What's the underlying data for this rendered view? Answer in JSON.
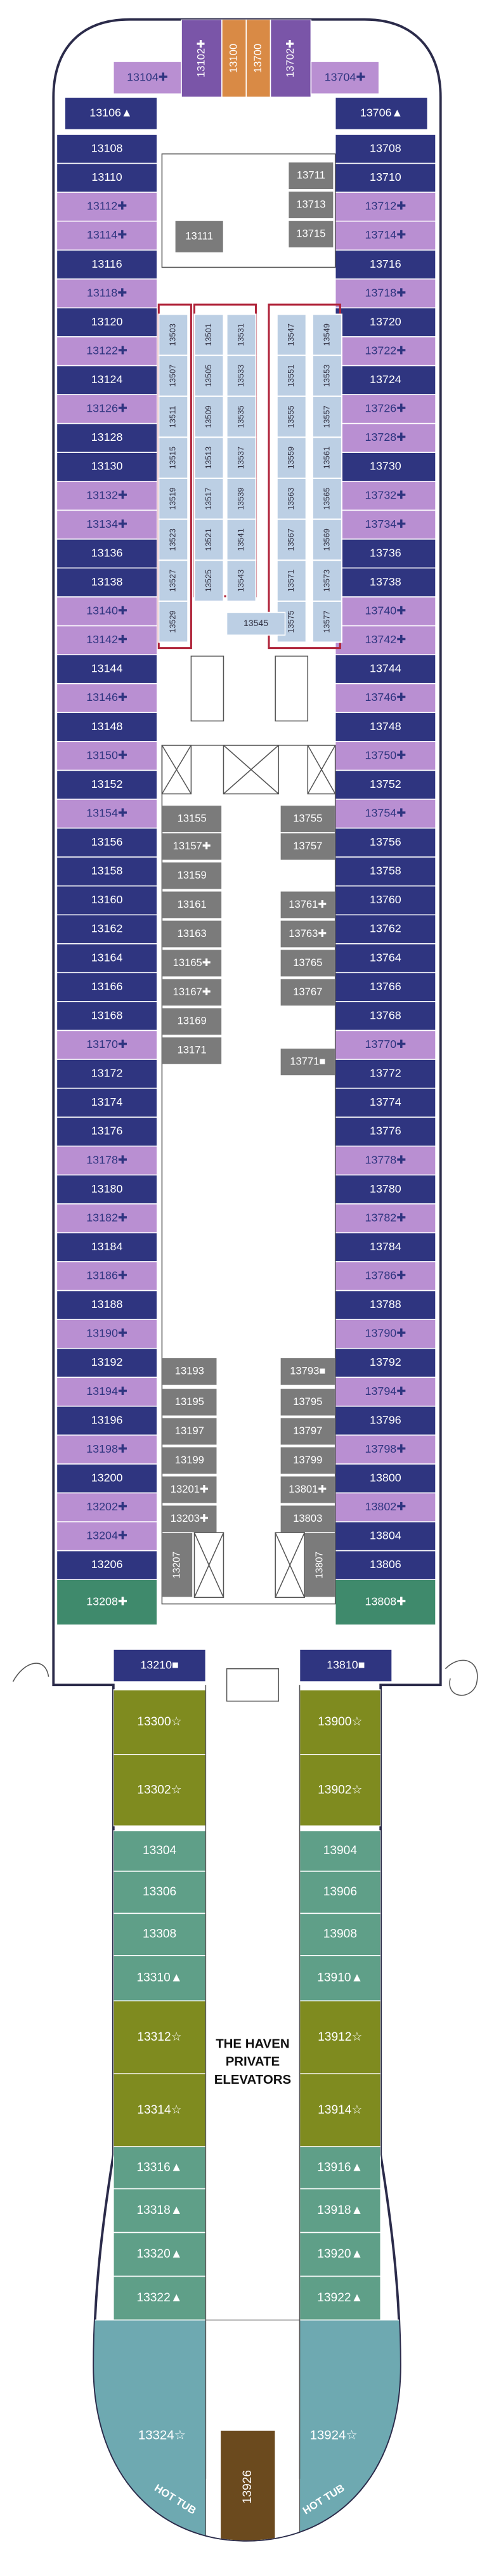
{
  "bow": [
    "13104✚",
    "13102✚",
    "13100",
    "13700",
    "13702✚",
    "13704✚",
    "13106▲",
    "13706▲"
  ],
  "port_cabins": [
    "13108",
    "13110",
    "13112✚",
    "13114✚",
    "13116",
    "13118✚",
    "13120",
    "13122✚",
    "13124",
    "13126✚",
    "13128",
    "13130",
    "13132✚",
    "13134✚",
    "13136",
    "13138",
    "13140✚",
    "13142✚",
    "13144",
    "13146✚",
    "13148",
    "13150✚",
    "13152",
    "13154✚",
    "13156",
    "13158",
    "13160",
    "13162",
    "13164",
    "13166",
    "13168",
    "13170✚",
    "13172",
    "13174",
    "13176",
    "13178✚",
    "13180",
    "13182✚",
    "13184",
    "13186✚",
    "13188",
    "13190✚",
    "13192",
    "13194✚",
    "13196",
    "13198✚",
    "13200",
    "13202✚",
    "13204✚",
    "13206"
  ],
  "starboard_cabins": [
    "13708",
    "13710",
    "13712✚",
    "13714✚",
    "13716",
    "13718✚",
    "13720",
    "13722✚",
    "13724",
    "13726✚",
    "13728✚",
    "13730",
    "13732✚",
    "13734✚",
    "13736",
    "13738",
    "13740✚",
    "13742✚",
    "13744",
    "13746✚",
    "13748",
    "13750✚",
    "13752",
    "13754✚",
    "13756",
    "13758",
    "13760",
    "13762",
    "13764",
    "13766",
    "13768",
    "13770✚",
    "13772",
    "13774",
    "13776",
    "13778✚",
    "13780",
    "13782✚",
    "13784",
    "13786✚",
    "13788",
    "13790✚",
    "13792",
    "13794✚",
    "13796",
    "13798✚",
    "13800",
    "13802✚",
    "13804",
    "13806"
  ],
  "end_cabins": [
    "13208✚",
    "13808✚"
  ],
  "forward_interior": [
    "13711",
    "13713",
    "13715",
    "13111"
  ],
  "inside_columns": [
    [
      "13503",
      "13507",
      "13511",
      "13515",
      "13519",
      "13523",
      "13527",
      "13529"
    ],
    [
      "13501",
      "13505",
      "13509",
      "13513",
      "13517",
      "13521",
      "13525"
    ],
    [
      "13531",
      "13533",
      "13535",
      "13537",
      "13539",
      "13541",
      "13543"
    ],
    [
      "13547",
      "13551",
      "13555",
      "13559",
      "13563",
      "13567",
      "13571",
      "13575"
    ],
    [
      "13549",
      "13553",
      "13557",
      "13561",
      "13565",
      "13569",
      "13573",
      "13577"
    ]
  ],
  "inside_extra": "13545",
  "mid_port": [
    "13155",
    "13157✚",
    "13159",
    "13161",
    "13163",
    "13165✚",
    "13167✚",
    "13169",
    "13171"
  ],
  "mid_starboard": [
    "13755",
    "13757",
    "13761✚",
    "13763✚",
    "13765",
    "13767",
    "13771■"
  ],
  "aft_port": [
    "13193",
    "13195",
    "13197",
    "13199",
    "13201✚",
    "13203✚",
    "13207"
  ],
  "aft_starboard": [
    "13793■",
    "13795",
    "13797",
    "13799",
    "13801✚",
    "13803",
    "13807"
  ],
  "corner_cabins": [
    "13210■",
    "13810■"
  ],
  "haven_port": [
    "13300☆",
    "13302☆",
    "13304",
    "13306",
    "13308",
    "13310▲",
    "13312☆",
    "13314☆",
    "13316▲",
    "13318▲",
    "13320▲",
    "13322▲",
    "13324☆"
  ],
  "haven_starboard": [
    "13900☆",
    "13902☆",
    "13904",
    "13906",
    "13908",
    "13910▲",
    "13912☆",
    "13914☆",
    "13916▲",
    "13918▲",
    "13920▲",
    "13922▲",
    "13924☆"
  ],
  "haven_elevators": [
    "THE HAVEN",
    "PRIVATE",
    "ELEVATORS"
  ],
  "aft_center": "13926",
  "hot_tubs": [
    "HOT TUB",
    "HOT TUB"
  ]
}
